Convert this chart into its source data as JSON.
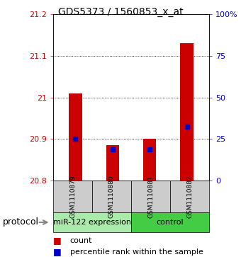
{
  "title": "GDS5373 / 1560853_x_at",
  "samples": [
    "GSM1110879",
    "GSM1110880",
    "GSM1110881",
    "GSM1110882"
  ],
  "groups": [
    {
      "name": "miR-122 expression",
      "sample_indices": [
        0,
        1
      ],
      "color": "#aaeaaa"
    },
    {
      "name": "control",
      "sample_indices": [
        2,
        3
      ],
      "color": "#44cc44"
    }
  ],
  "red_values": [
    21.01,
    20.885,
    20.9,
    21.13
  ],
  "blue_values": [
    20.9,
    20.875,
    20.875,
    20.93
  ],
  "ymin": 20.8,
  "ymax": 21.2,
  "yticks_left": [
    20.8,
    20.9,
    21.0,
    21.1,
    21.2
  ],
  "ytick_labels_left": [
    "20.8",
    "20.9",
    "21",
    "21.1",
    "21.2"
  ],
  "yticks_right": [
    0,
    25,
    50,
    75,
    100
  ],
  "ytick_labels_right": [
    "0",
    "25",
    "50",
    "75",
    "100%"
  ],
  "grid_values": [
    20.9,
    21.0,
    21.1
  ],
  "bar_width": 0.35,
  "bar_color": "#cc0000",
  "blue_color": "#0000cc",
  "left_tick_color": "#cc0000",
  "right_tick_color": "#0000cc",
  "sample_box_color": "#cccccc",
  "protocol_label": "protocol",
  "title_fontsize": 10,
  "tick_fontsize": 8,
  "sample_fontsize": 6.5,
  "group_fontsize": 8,
  "legend_fontsize": 8
}
